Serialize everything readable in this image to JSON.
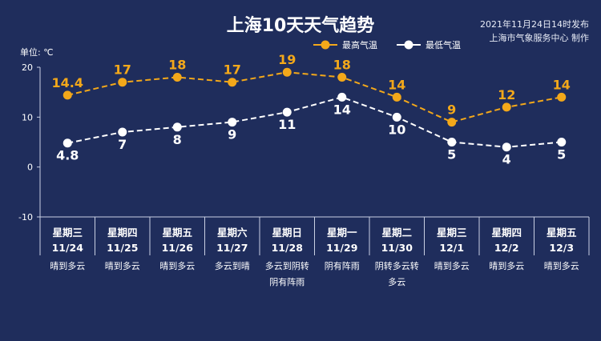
{
  "header": {
    "title": "上海10天天气趋势",
    "publish_time": "2021年11月24日14时发布",
    "publisher": "上海市气象服务中心 制作"
  },
  "colors": {
    "background": "#1f2d5c",
    "high_series": "#f3a81a",
    "low_series": "#ffffff",
    "axis": "#c9d0e3"
  },
  "chart_data": {
    "type": "line",
    "title": "上海10天天气趋势",
    "unit_label": "单位: ℃",
    "ylim": [
      -10,
      20
    ],
    "yticks": [
      20,
      10,
      0,
      -10
    ],
    "grid": false,
    "legend_position": "top-right",
    "days": [
      {
        "weekday": "星期三",
        "date": "11/24",
        "weather": [
          "晴到多云"
        ]
      },
      {
        "weekday": "星期四",
        "date": "11/25",
        "weather": [
          "晴到多云"
        ]
      },
      {
        "weekday": "星期五",
        "date": "11/26",
        "weather": [
          "晴到多云"
        ]
      },
      {
        "weekday": "星期六",
        "date": "11/27",
        "weather": [
          "多云到晴"
        ]
      },
      {
        "weekday": "星期日",
        "date": "11/28",
        "weather": [
          "多云到阴转",
          "阴有阵雨"
        ]
      },
      {
        "weekday": "星期一",
        "date": "11/29",
        "weather": [
          "阴有阵雨"
        ]
      },
      {
        "weekday": "星期二",
        "date": "11/30",
        "weather": [
          "阴转多云转",
          "多云"
        ]
      },
      {
        "weekday": "星期三",
        "date": "12/1",
        "weather": [
          "晴到多云"
        ]
      },
      {
        "weekday": "星期四",
        "date": "12/2",
        "weather": [
          "晴到多云"
        ]
      },
      {
        "weekday": "星期五",
        "date": "12/3",
        "weather": [
          "晴到多云"
        ]
      }
    ],
    "series": [
      {
        "name": "最高气温",
        "values": [
          14.4,
          17,
          18,
          17,
          19,
          18,
          14,
          9,
          12,
          14
        ],
        "labels": [
          "14.4",
          "17",
          "18",
          "17",
          "19",
          "18",
          "14",
          "9",
          "12",
          "14"
        ]
      },
      {
        "name": "最低气温",
        "values": [
          4.8,
          7,
          8,
          9,
          11,
          14,
          10,
          5,
          4,
          5
        ],
        "labels": [
          "4.8",
          "7",
          "8",
          "9",
          "11",
          "14",
          "10",
          "5",
          "4",
          "5"
        ]
      }
    ]
  }
}
